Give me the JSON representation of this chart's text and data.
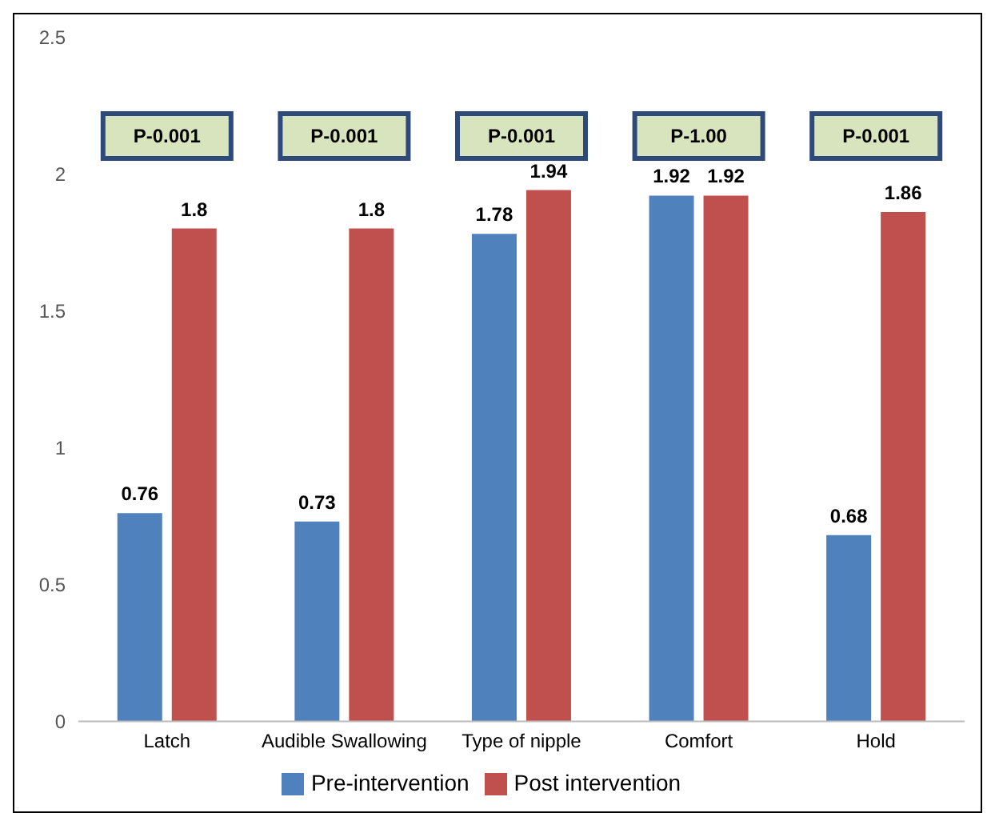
{
  "chart_data": {
    "type": "bar",
    "categories": [
      "Latch",
      "Audible Swallowing",
      "Type of nipple",
      "Comfort",
      "Hold"
    ],
    "series": [
      {
        "name": "Pre-intervention",
        "color": "#4f81bd",
        "values": [
          0.76,
          0.73,
          1.78,
          1.92,
          0.68
        ]
      },
      {
        "name": "Post intervention",
        "color": "#c0504d",
        "values": [
          1.8,
          1.8,
          1.94,
          1.92,
          1.86
        ]
      }
    ],
    "ylim": [
      0,
      2.5
    ],
    "yticks": [
      0,
      0.5,
      1,
      1.5,
      2,
      2.5
    ],
    "grid": false,
    "legend": "bottom",
    "data_labels": true,
    "annotations": [
      "P-0.001",
      "P-0.001",
      "P-0.001",
      "P-1.00",
      "P-0.001"
    ]
  }
}
